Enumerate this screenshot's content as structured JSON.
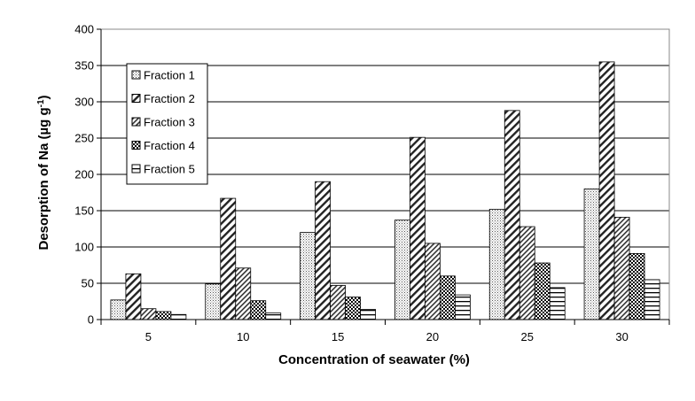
{
  "chart_data": {
    "type": "bar",
    "title": "",
    "xlabel": "Concentration of seawater (%)",
    "ylabel": "Desorption of Na (µg g",
    "ylabel_sup": "-1",
    "ylabel_close": ")",
    "categories": [
      "5",
      "10",
      "15",
      "20",
      "25",
      "30"
    ],
    "ylim": [
      0,
      400
    ],
    "yticks": [
      0,
      50,
      100,
      150,
      200,
      250,
      300,
      350,
      400
    ],
    "grid": true,
    "legend": "top-left",
    "series": [
      {
        "name": "Fraction 1",
        "pattern": "dots",
        "values": [
          27,
          49,
          120,
          137,
          152,
          180
        ]
      },
      {
        "name": "Fraction 2",
        "pattern": "diag-wide",
        "values": [
          63,
          167,
          190,
          251,
          288,
          355
        ]
      },
      {
        "name": "Fraction 3",
        "pattern": "diag",
        "values": [
          15,
          71,
          47,
          105,
          128,
          141
        ]
      },
      {
        "name": "Fraction 4",
        "pattern": "checker",
        "values": [
          11,
          26,
          31,
          60,
          78,
          91
        ]
      },
      {
        "name": "Fraction 5",
        "pattern": "hlines",
        "values": [
          7,
          9,
          14,
          34,
          44,
          55
        ]
      }
    ]
  }
}
